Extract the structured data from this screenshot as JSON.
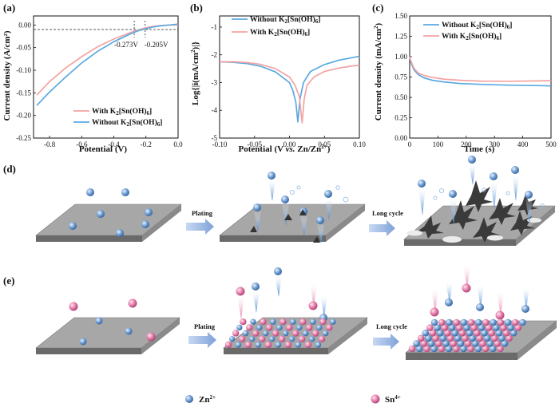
{
  "panels": {
    "a": "(a)",
    "b": "(b)",
    "c": "(c)",
    "d": "(d)",
    "e": "(e)"
  },
  "colors": {
    "without": "#5aa9e0",
    "with": "#f4a3a3",
    "zn_ion": "#6d9bd1",
    "sn_ion": "#e47aa6",
    "substrate_top": "#a3a3a3",
    "arrow": "#9cb7e0"
  },
  "chart_data": [
    {
      "id": "a",
      "type": "line",
      "xlabel": "Potential (V)",
      "ylabel": "Current density (A/cm²)",
      "xlim": [
        -0.9,
        0.0
      ],
      "ylim": [
        -0.25,
        0.02
      ],
      "xticks": [
        -0.8,
        -0.6,
        -0.4,
        -0.2,
        0.0
      ],
      "xtick_labels": [
        "-0.8",
        "-0.6",
        "-0.4",
        "-0.2",
        "0.0"
      ],
      "yticks": [
        0.0,
        -0.05,
        -0.1,
        -0.15,
        -0.2,
        -0.25
      ],
      "ytick_labels": [
        "0.00",
        "-0.05",
        "-0.10",
        "-0.15",
        "-0.20",
        "-0.25"
      ],
      "annotations": [
        "-0.273V",
        "-0.205V"
      ],
      "reference_y": -0.01,
      "onset_x": [
        -0.273,
        -0.205
      ],
      "legend": [
        "With K2[Sn(OH)6]",
        "Without K2[Sn(OH)6]"
      ],
      "series": [
        {
          "name": "With K2[Sn(OH)6]",
          "key": "with",
          "x": [
            -0.88,
            -0.8,
            -0.7,
            -0.6,
            -0.5,
            -0.4,
            -0.3,
            -0.25,
            -0.2,
            -0.15,
            -0.1,
            -0.05,
            0.0
          ],
          "y": [
            -0.155,
            -0.125,
            -0.095,
            -0.07,
            -0.048,
            -0.031,
            -0.017,
            -0.011,
            -0.006,
            -0.003,
            -0.001,
            0.0,
            0.0
          ]
        },
        {
          "name": "Without K2[Sn(OH)6]",
          "key": "without",
          "x": [
            -0.88,
            -0.8,
            -0.7,
            -0.6,
            -0.5,
            -0.4,
            -0.3,
            -0.25,
            -0.2,
            -0.15,
            -0.1,
            -0.05,
            0.0
          ],
          "y": [
            -0.178,
            -0.148,
            -0.115,
            -0.084,
            -0.058,
            -0.037,
            -0.02,
            -0.013,
            -0.008,
            -0.004,
            -0.0015,
            0.0,
            0.002
          ]
        }
      ]
    },
    {
      "id": "b",
      "type": "line",
      "xlabel": "Potential (V vs. Zn/Zn²⁺)",
      "ylabel": "Log{|i(mA/cm²)|}",
      "xlim": [
        -0.1,
        0.1
      ],
      "ylim": [
        -5,
        -0.6
      ],
      "xticks": [
        -0.1,
        -0.05,
        0.0,
        0.05,
        0.1
      ],
      "xtick_labels": [
        "-0.10",
        "-0.05",
        "0.00",
        "0.05",
        "0.10"
      ],
      "yticks": [
        -1,
        -2,
        -3,
        -4,
        -5
      ],
      "ytick_labels": [
        "-1",
        "-2",
        "-3",
        "-4",
        "-5"
      ],
      "legend": [
        "Without K2[Sn(OH)6]",
        "With K2[Sn(OH)6]"
      ],
      "series": [
        {
          "name": "Without K2[Sn(OH)6]",
          "key": "without",
          "x": [
            -0.1,
            -0.08,
            -0.06,
            -0.04,
            -0.02,
            0.0,
            0.005,
            0.009,
            0.012,
            0.015,
            0.02,
            0.03,
            0.05,
            0.07,
            0.09,
            0.1
          ],
          "y": [
            -2.25,
            -2.27,
            -2.32,
            -2.42,
            -2.62,
            -3.0,
            -3.3,
            -3.7,
            -4.42,
            -3.6,
            -3.0,
            -2.6,
            -2.35,
            -2.2,
            -2.1,
            -2.05
          ]
        },
        {
          "name": "With K2[Sn(OH)6]",
          "key": "with",
          "x": [
            -0.1,
            -0.08,
            -0.06,
            -0.04,
            -0.02,
            0.0,
            0.008,
            0.014,
            0.018,
            0.021,
            0.025,
            0.035,
            0.05,
            0.07,
            0.09,
            0.1
          ],
          "y": [
            -2.25,
            -2.25,
            -2.28,
            -2.35,
            -2.5,
            -2.8,
            -3.1,
            -3.5,
            -4.45,
            -3.6,
            -3.1,
            -2.8,
            -2.6,
            -2.48,
            -2.4,
            -2.38
          ]
        }
      ]
    },
    {
      "id": "c",
      "type": "line",
      "xlabel": "Time (s)",
      "ylabel": "Current density (mA/cm²)",
      "xlim": [
        0,
        500
      ],
      "ylim": [
        0.0,
        1.5
      ],
      "xticks": [
        0,
        100,
        200,
        300,
        400,
        500
      ],
      "xtick_labels": [
        "0",
        "100",
        "200",
        "300",
        "400",
        "500"
      ],
      "yticks": [
        0.0,
        0.25,
        0.5,
        0.75,
        1.0,
        1.25,
        1.5
      ],
      "ytick_labels": [
        "0.00",
        "0.25",
        "0.50",
        "0.75",
        "1.00",
        "1.25",
        "1.50"
      ],
      "legend": [
        "Without K2[Sn(OH)6]",
        "With K2[Sn(OH)6]"
      ],
      "series": [
        {
          "name": "Without K2[Sn(OH)6]",
          "key": "without",
          "x": [
            0,
            5,
            15,
            30,
            50,
            80,
            120,
            180,
            250,
            350,
            450,
            500
          ],
          "y": [
            1.0,
            0.92,
            0.84,
            0.78,
            0.74,
            0.71,
            0.69,
            0.67,
            0.66,
            0.65,
            0.645,
            0.64
          ]
        },
        {
          "name": "With K2[Sn(OH)6]",
          "key": "with",
          "x": [
            0,
            5,
            15,
            30,
            50,
            80,
            120,
            180,
            250,
            350,
            450,
            500
          ],
          "y": [
            1.0,
            0.94,
            0.86,
            0.8,
            0.77,
            0.745,
            0.725,
            0.71,
            0.7,
            0.698,
            0.702,
            0.705
          ]
        }
      ]
    }
  ],
  "legend_text": {
    "with": "With K",
    "without": "Without K",
    "formula_tail": "[Sn(OH)",
    "sub2": "2",
    "sub6": "6",
    "close": "]"
  },
  "schematic": {
    "plating_label": "Plating",
    "long_cycle_label": "Long cycle",
    "zn_label": "Zn",
    "zn_charge": "2+",
    "sn_label": "Sn",
    "sn_charge": "4+"
  }
}
